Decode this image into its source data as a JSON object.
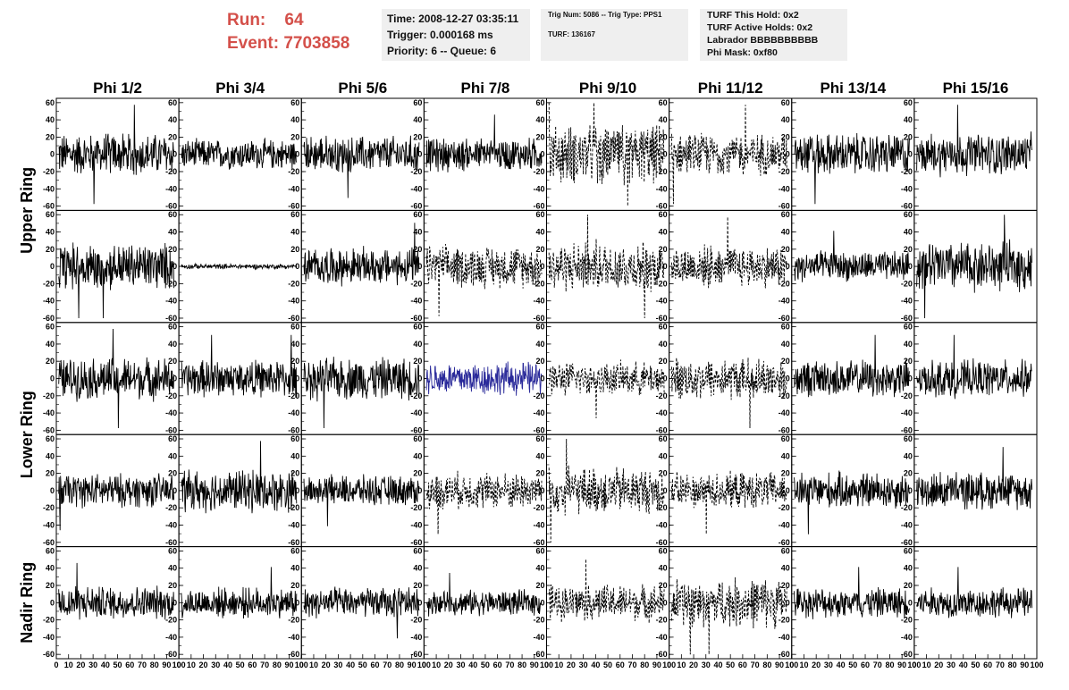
{
  "header": {
    "run_label": "Run:",
    "run_value": "64",
    "event_label": "Event:",
    "event_value": "7703858"
  },
  "info_panel": {
    "time": "Time: 2008-12-27 03:35:11",
    "trigger": "Trigger: 0.000168 ms",
    "priority": "Priority: 6 -- Queue: 6"
  },
  "trig_panel": {
    "trig": "Trig Num: 5086 -- Trig Type: PPS1",
    "turf": "TURF: 136167"
  },
  "turf_panel": {
    "this_hold": "TURF This Hold: 0x2",
    "active_holds": "TURF Active Holds: 0x2",
    "labrador": "Labrador BBBBBBBBBB",
    "phi_mask": "Phi Mask: 0xf80"
  },
  "chart_data": {
    "type": "line",
    "columns": [
      "Phi 1/2",
      "Phi 3/4",
      "Phi 5/6",
      "Phi 7/8",
      "Phi 9/10",
      "Phi 11/12",
      "Phi 13/14",
      "Phi 15/16"
    ],
    "rows": [
      "Upper Ring",
      "Lower Ring",
      "Nadir Ring"
    ],
    "xlim": [
      0,
      100
    ],
    "ylim": [
      -65,
      65
    ],
    "x_ticks": [
      "0",
      "10",
      "20",
      "30",
      "40",
      "50",
      "60",
      "70",
      "80",
      "90",
      "100"
    ],
    "y_ticks": [
      "60",
      "40",
      "20",
      "0",
      "-20",
      "-40",
      "-60"
    ],
    "panels": [
      {
        "row": 0,
        "col": 0,
        "amplitude": 25,
        "spikes": 2,
        "style": "solid",
        "color": "#000000"
      },
      {
        "row": 0,
        "col": 1,
        "amplitude": 18,
        "spikes": 0,
        "style": "solid",
        "color": "#000000"
      },
      {
        "row": 0,
        "col": 2,
        "amplitude": 22,
        "spikes": 1,
        "style": "solid",
        "color": "#000000"
      },
      {
        "row": 0,
        "col": 3,
        "amplitude": 20,
        "spikes": 1,
        "style": "solid",
        "color": "#000000"
      },
      {
        "row": 0,
        "col": 4,
        "amplitude": 35,
        "spikes": 3,
        "style": "dashed",
        "color": "#000000"
      },
      {
        "row": 0,
        "col": 5,
        "amplitude": 25,
        "spikes": 2,
        "style": "dashed",
        "color": "#000000"
      },
      {
        "row": 0,
        "col": 6,
        "amplitude": 25,
        "spikes": 1,
        "style": "solid",
        "color": "#000000"
      },
      {
        "row": 0,
        "col": 7,
        "amplitude": 25,
        "spikes": 1,
        "style": "solid",
        "color": "#000000"
      },
      {
        "row": 1,
        "col": 0,
        "amplitude": 28,
        "spikes": 2,
        "style": "solid",
        "color": "#000000"
      },
      {
        "row": 1,
        "col": 1,
        "amplitude": 3,
        "spikes": 0,
        "style": "solid",
        "color": "#000000"
      },
      {
        "row": 1,
        "col": 2,
        "amplitude": 22,
        "spikes": 1,
        "style": "solid",
        "color": "#000000"
      },
      {
        "row": 1,
        "col": 3,
        "amplitude": 25,
        "spikes": 1,
        "style": "dashed",
        "color": "#000000"
      },
      {
        "row": 1,
        "col": 4,
        "amplitude": 30,
        "spikes": 2,
        "style": "dashed",
        "color": "#000000"
      },
      {
        "row": 1,
        "col": 5,
        "amplitude": 25,
        "spikes": 1,
        "style": "dashed",
        "color": "#000000"
      },
      {
        "row": 1,
        "col": 6,
        "amplitude": 18,
        "spikes": 1,
        "style": "solid",
        "color": "#000000"
      },
      {
        "row": 1,
        "col": 7,
        "amplitude": 30,
        "spikes": 2,
        "style": "solid",
        "color": "#000000"
      },
      {
        "row": 2,
        "col": 0,
        "amplitude": 25,
        "spikes": 2,
        "style": "solid",
        "color": "#000000"
      },
      {
        "row": 2,
        "col": 1,
        "amplitude": 22,
        "spikes": 2,
        "style": "solid",
        "color": "#000000"
      },
      {
        "row": 2,
        "col": 2,
        "amplitude": 25,
        "spikes": 1,
        "style": "solid",
        "color": "#000000"
      },
      {
        "row": 2,
        "col": 3,
        "amplitude": 20,
        "spikes": 0,
        "style": "solid",
        "color": "#2a2a9a"
      },
      {
        "row": 2,
        "col": 4,
        "amplitude": 20,
        "spikes": 1,
        "style": "dashed",
        "color": "#000000"
      },
      {
        "row": 2,
        "col": 5,
        "amplitude": 25,
        "spikes": 1,
        "style": "dashed",
        "color": "#000000"
      },
      {
        "row": 2,
        "col": 6,
        "amplitude": 22,
        "spikes": 1,
        "style": "solid",
        "color": "#000000"
      },
      {
        "row": 2,
        "col": 7,
        "amplitude": 22,
        "spikes": 1,
        "style": "solid",
        "color": "#000000"
      },
      {
        "row": 3,
        "col": 0,
        "amplitude": 20,
        "spikes": 1,
        "style": "solid",
        "color": "#000000"
      },
      {
        "row": 3,
        "col": 1,
        "amplitude": 25,
        "spikes": 1,
        "style": "solid",
        "color": "#000000"
      },
      {
        "row": 3,
        "col": 2,
        "amplitude": 18,
        "spikes": 1,
        "style": "solid",
        "color": "#000000"
      },
      {
        "row": 3,
        "col": 3,
        "amplitude": 22,
        "spikes": 1,
        "style": "dashed",
        "color": "#000000"
      },
      {
        "row": 3,
        "col": 4,
        "amplitude": 28,
        "spikes": 2,
        "style": "dashed",
        "color": "#000000"
      },
      {
        "row": 3,
        "col": 5,
        "amplitude": 22,
        "spikes": 1,
        "style": "dashed",
        "color": "#000000"
      },
      {
        "row": 3,
        "col": 6,
        "amplitude": 22,
        "spikes": 1,
        "style": "solid",
        "color": "#000000"
      },
      {
        "row": 3,
        "col": 7,
        "amplitude": 22,
        "spikes": 1,
        "style": "solid",
        "color": "#000000"
      },
      {
        "row": 4,
        "col": 0,
        "amplitude": 20,
        "spikes": 1,
        "style": "solid",
        "color": "#000000"
      },
      {
        "row": 4,
        "col": 1,
        "amplitude": 18,
        "spikes": 1,
        "style": "solid",
        "color": "#000000"
      },
      {
        "row": 4,
        "col": 2,
        "amplitude": 18,
        "spikes": 1,
        "style": "solid",
        "color": "#000000"
      },
      {
        "row": 4,
        "col": 3,
        "amplitude": 15,
        "spikes": 1,
        "style": "solid",
        "color": "#000000"
      },
      {
        "row": 4,
        "col": 4,
        "amplitude": 22,
        "spikes": 1,
        "style": "dashed",
        "color": "#000000"
      },
      {
        "row": 4,
        "col": 5,
        "amplitude": 30,
        "spikes": 2,
        "style": "dashed",
        "color": "#000000"
      },
      {
        "row": 4,
        "col": 6,
        "amplitude": 18,
        "spikes": 1,
        "style": "solid",
        "color": "#000000"
      },
      {
        "row": 4,
        "col": 7,
        "amplitude": 18,
        "spikes": 1,
        "style": "solid",
        "color": "#000000"
      }
    ]
  }
}
